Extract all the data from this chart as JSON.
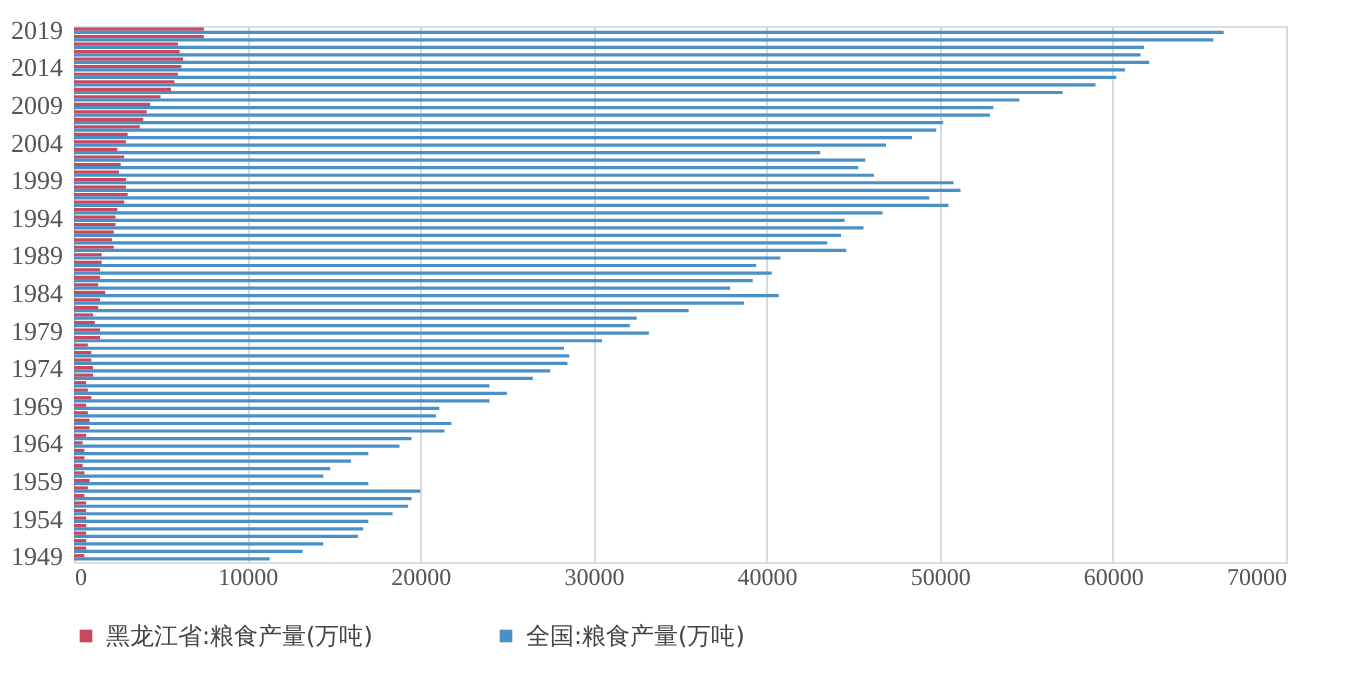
{
  "chart_data": {
    "type": "bar",
    "orientation": "horizontal",
    "categories": [
      "2019",
      null,
      null,
      null,
      null,
      "2014",
      null,
      null,
      null,
      null,
      "2009",
      null,
      null,
      null,
      null,
      "2004",
      null,
      null,
      null,
      null,
      "1999",
      null,
      null,
      null,
      null,
      "1994",
      null,
      null,
      null,
      null,
      "1989",
      null,
      null,
      null,
      null,
      "1984",
      null,
      null,
      null,
      null,
      "1979",
      null,
      null,
      null,
      null,
      "1974",
      null,
      null,
      null,
      null,
      "1969",
      null,
      null,
      null,
      null,
      "1964",
      null,
      null,
      null,
      null,
      "1959",
      null,
      null,
      null,
      null,
      "1954",
      null,
      null,
      null,
      null,
      "1949"
    ],
    "series": [
      {
        "name": "黑龙江省:粮食产量(万吨)",
        "color": "#c9485b",
        "values": [
          7500,
          7500,
          6000,
          6100,
          6300,
          6200,
          6000,
          5800,
          5600,
          5000,
          4400,
          4200,
          4000,
          3800,
          3100,
          3000,
          2500,
          2900,
          2700,
          2600,
          3000,
          3000,
          3100,
          2900,
          2500,
          2400,
          2400,
          2300,
          2200,
          2300,
          1600,
          1600,
          1500,
          1500,
          1400,
          1800,
          1500,
          1400,
          1100,
          1200,
          1500,
          1500,
          800,
          1000,
          1000,
          1100,
          1100,
          700,
          800,
          1000,
          700,
          800,
          900,
          900,
          700,
          500,
          600,
          600,
          500,
          600,
          900,
          800,
          600,
          700,
          700,
          700,
          700,
          700,
          700,
          700,
          600
        ]
      },
      {
        "name": "全国:粮食产量(万吨)",
        "color": "#4a90c4",
        "values": [
          66400,
          65800,
          61800,
          61600,
          62100,
          60700,
          60200,
          59000,
          57100,
          54600,
          53100,
          52900,
          50200,
          49800,
          48400,
          46900,
          43100,
          45700,
          45300,
          46200,
          50800,
          51200,
          49400,
          50500,
          46700,
          44500,
          45600,
          44300,
          43500,
          44600,
          40800,
          39400,
          40300,
          39200,
          37900,
          40700,
          38700,
          35500,
          32500,
          32100,
          33200,
          30500,
          28300,
          28600,
          28500,
          27500,
          26500,
          24000,
          25000,
          24000,
          21100,
          20900,
          21800,
          21400,
          19500,
          18800,
          17000,
          16000,
          14800,
          14400,
          17000,
          20000,
          19500,
          19300,
          18400,
          17000,
          16700,
          16400,
          14400,
          13200,
          11300
        ]
      }
    ],
    "xlim": [
      0,
      70000
    ],
    "xticks": [
      0,
      10000,
      20000,
      30000,
      40000,
      50000,
      60000,
      70000
    ],
    "grid": "x",
    "legend": "bottom"
  }
}
